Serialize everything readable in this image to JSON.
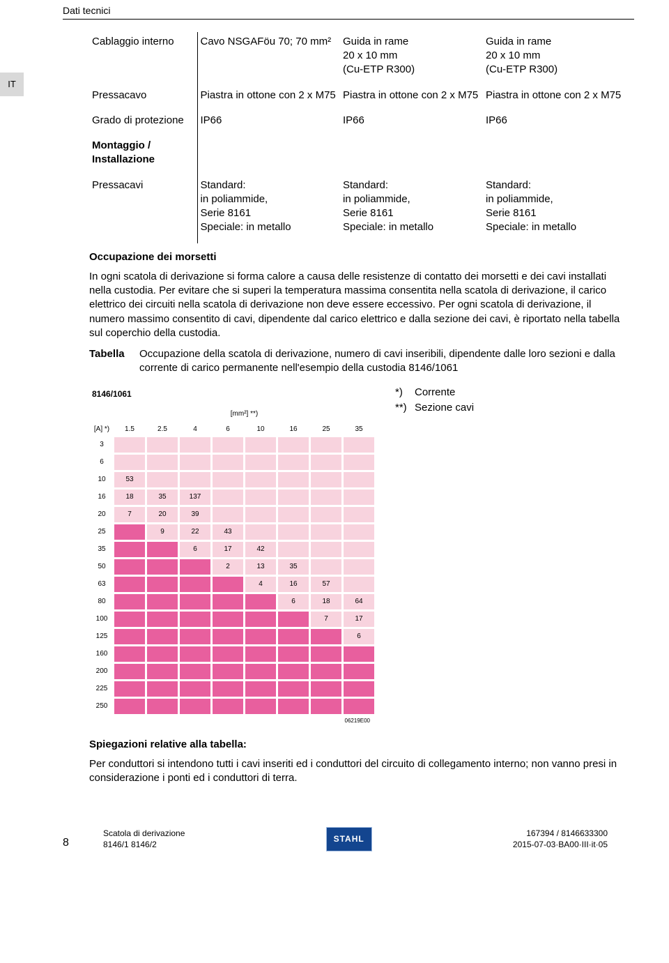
{
  "header": {
    "section": "Dati tecnici",
    "lang_tab": "IT"
  },
  "specs": {
    "rows": [
      {
        "label": "Cablaggio interno",
        "c1": "Cavo NSGAFöu 70; 70 mm²",
        "c2": "Guida in rame\n20 x 10 mm\n(Cu-ETP R300)",
        "c3": "Guida in rame\n20 x 10 mm\n(Cu-ETP R300)"
      },
      {
        "label": "Pressacavo",
        "c1": "Piastra in ottone con 2 x M75",
        "c2": "Piastra in ottone con 2 x M75",
        "c3": "Piastra in ottone con 2 x M75"
      },
      {
        "label": "Grado di protezione",
        "c1": "IP66",
        "c2": "IP66",
        "c3": "IP66"
      },
      {
        "label": "Montaggio / Installazione",
        "bold": true,
        "c1": "",
        "c2": "",
        "c3": ""
      },
      {
        "label": "Pressacavi",
        "c1": "Standard:\nin poliammide,\nSerie 8161\nSpeciale: in metallo",
        "c2": "Standard:\nin poliammide,\nSerie 8161\nSpeciale: in metallo",
        "c3": "Standard:\nin poliammide,\nSerie 8161\nSpeciale: in metallo"
      }
    ]
  },
  "occ": {
    "heading": "Occupazione dei morsetti",
    "para": "In ogni scatola di derivazione si forma calore a causa delle resistenze di contatto dei morsetti e dei cavi installati nella custodia. Per evitare che si superi la temperatura massima consentita nella scatola di derivazione, il carico elettrico dei circuiti nella scatola di derivazione non deve essere eccessivo. Per ogni scatola di derivazione, il numero massimo consentito di cavi, dipendente dal carico elettrico e dalla sezione dei cavi, è riportato nella tabella sul coperchio della custodia.",
    "tabella_label": "Tabella",
    "tabella_desc": "Occupazione della scatola di derivazione, numero di cavi inseribili, dipendente dalle loro sezioni e dalla corrente di carico permanente nell'esempio della custodia 8146/1061",
    "legend_star": "*)",
    "legend_star_text": "Corrente",
    "legend_dstar": "**)",
    "legend_dstar_text": "Sezione cavi"
  },
  "chart": {
    "model": "8146/1061",
    "mm2_label": "[mm²] **)",
    "a_label": "[A] *)",
    "mm2": [
      "1.5",
      "2.5",
      "4",
      "6",
      "10",
      "16",
      "25",
      "35"
    ],
    "amps": [
      "3",
      "6",
      "10",
      "16",
      "20",
      "25",
      "35",
      "50",
      "63",
      "80",
      "100",
      "125",
      "160",
      "200",
      "225",
      "250"
    ],
    "cells": {
      "10": {
        "1.5": "53"
      },
      "16": {
        "1.5": "18",
        "2.5": "35",
        "4": "137"
      },
      "20": {
        "1.5": "7",
        "2.5": "20",
        "4": "39"
      },
      "25": {
        "2.5": "9",
        "4": "22",
        "6": "43"
      },
      "35": {
        "4": "6",
        "6": "17",
        "10": "42"
      },
      "50": {
        "6": "2",
        "10": "13",
        "16": "35"
      },
      "63": {
        "10": "4",
        "16": "16",
        "25": "57"
      },
      "80": {
        "16": "6",
        "25": "18",
        "35": "64"
      },
      "100": {
        "25": "7",
        "35": "17"
      },
      "125": {
        "35": "6"
      }
    },
    "shape": {
      "3": [
        "L",
        "L",
        "L",
        "L",
        "L",
        "L",
        "L",
        "L",
        "L",
        "L",
        "L",
        "L",
        "L",
        "L",
        "L",
        "L"
      ],
      "6": [
        "L",
        "L",
        "L",
        "L",
        "L",
        "L",
        "L",
        "L",
        "L",
        "L",
        "L",
        "L",
        "L",
        "L",
        "L",
        "L"
      ],
      "10": [
        "V",
        "V",
        "L",
        "L",
        "L",
        "L",
        "L",
        "L",
        "L",
        "L",
        "L",
        "L",
        "L",
        "L",
        "L",
        "L"
      ],
      "16": [
        "V",
        "V",
        "V",
        "V",
        "V",
        "V",
        "L",
        "L",
        "L",
        "L",
        "L",
        "L",
        "L",
        "L",
        "L",
        "L"
      ],
      "20": [
        "V",
        "V",
        "V",
        "V",
        "V",
        "V",
        "L",
        "L",
        "L",
        "L",
        "L",
        "L",
        "L",
        "L",
        "L",
        "L"
      ],
      "25": [
        "D",
        "D",
        "V",
        "V",
        "V",
        "V",
        "V",
        "V",
        "L",
        "L",
        "L",
        "L",
        "L",
        "L",
        "L",
        "L"
      ],
      "35": [
        "D",
        "D",
        "D",
        "D",
        "V",
        "V",
        "V",
        "V",
        "V",
        "V",
        "L",
        "L",
        "L",
        "L",
        "L",
        "L"
      ],
      "50": [
        "D",
        "D",
        "D",
        "D",
        "D",
        "D",
        "V",
        "V",
        "V",
        "V",
        "V",
        "V",
        "L",
        "L",
        "L",
        "L"
      ],
      "63": [
        "D",
        "D",
        "D",
        "D",
        "D",
        "D",
        "D",
        "D",
        "V",
        "V",
        "V",
        "V",
        "V",
        "V",
        "L",
        "L"
      ],
      "80": [
        "D",
        "D",
        "D",
        "D",
        "D",
        "D",
        "D",
        "D",
        "D",
        "D",
        "V",
        "V",
        "V",
        "V",
        "V",
        "V"
      ],
      "100": [
        "D",
        "D",
        "D",
        "D",
        "D",
        "D",
        "D",
        "D",
        "D",
        "D",
        "D",
        "D",
        "V",
        "V",
        "V",
        "V"
      ],
      "125": [
        "D",
        "D",
        "D",
        "D",
        "D",
        "D",
        "D",
        "D",
        "D",
        "D",
        "D",
        "D",
        "D",
        "D",
        "V",
        "V"
      ],
      "160": [
        "D",
        "D",
        "D",
        "D",
        "D",
        "D",
        "D",
        "D",
        "D",
        "D",
        "D",
        "D",
        "D",
        "D",
        "D",
        "D"
      ],
      "200": [
        "D",
        "D",
        "D",
        "D",
        "D",
        "D",
        "D",
        "D",
        "D",
        "D",
        "D",
        "D",
        "D",
        "D",
        "D",
        "D"
      ],
      "225": [
        "D",
        "D",
        "D",
        "D",
        "D",
        "D",
        "D",
        "D",
        "D",
        "D",
        "D",
        "D",
        "D",
        "D",
        "D",
        "D"
      ],
      "250": [
        "D",
        "D",
        "D",
        "D",
        "D",
        "D",
        "D",
        "D",
        "D",
        "D",
        "D",
        "D",
        "D",
        "D",
        "D",
        "D"
      ]
    },
    "img_code": "06219E00",
    "colors": {
      "light": "#f8d3de",
      "dark": "#e85f9e"
    }
  },
  "explain": {
    "heading": "Spiegazioni relative alla tabella:",
    "para": "Per conduttori si intendono tutti i cavi inseriti ed i conduttori del circuito di collegamento interno; non vanno presi in considerazione i ponti ed i conduttori di terra."
  },
  "footer": {
    "page_no": "8",
    "left1": "Scatola di derivazione",
    "left2": "8146/1 8146/2",
    "logo": "STAHL",
    "right1": "167394 / 8146633300",
    "right2": "2015-07-03·BA00·III·it·05"
  }
}
